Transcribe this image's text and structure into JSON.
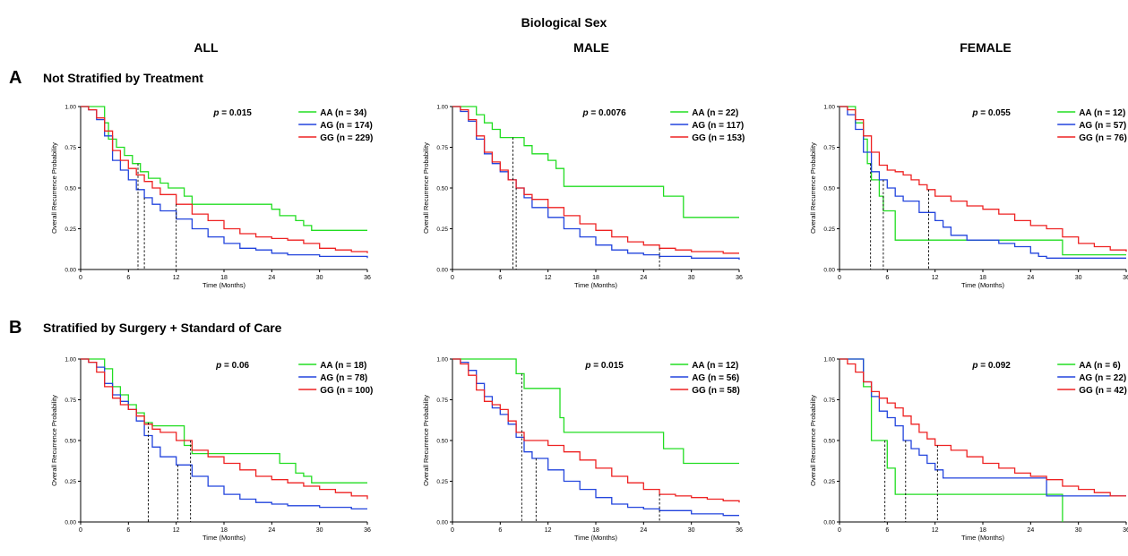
{
  "figure": {
    "supertitle": "Biological Sex",
    "columns": [
      "ALL",
      "MALE",
      "FEMALE"
    ],
    "rows": [
      {
        "letter": "A",
        "title": "Not Stratified by Treatment"
      },
      {
        "letter": "B",
        "title": "Stratified by Surgery + Standard of Care"
      }
    ],
    "colors": {
      "AA": "#22dd22",
      "AG": "#2244dd",
      "GG": "#ee2222"
    }
  },
  "chart_data": [
    {
      "type": "line",
      "id": "A-ALL",
      "xlabel": "Time (Months)",
      "ylabel": "Overall Recurrence Probability",
      "xlim": [
        0,
        36
      ],
      "ylim": [
        0,
        1
      ],
      "xticks": [
        "0",
        "6",
        "12",
        "18",
        "24",
        "30",
        "36"
      ],
      "yticks": [
        "0.00",
        "0.25",
        "0.50",
        "0.75",
        "1.00"
      ],
      "pvalue_prefix": "p",
      "pvalue_text": " = 0.015",
      "legend_position": "top-right",
      "medians": [
        7.2,
        8.0,
        12.0
      ],
      "series": [
        {
          "name": "AA (n = 34)",
          "key": "AA",
          "x": [
            0,
            2,
            3,
            3.5,
            4.5,
            5.5,
            6.5,
            7.5,
            8.5,
            10,
            11,
            12,
            13,
            14,
            18,
            23,
            24,
            25,
            27,
            28,
            29,
            36
          ],
          "y": [
            1,
            1,
            0.9,
            0.8,
            0.75,
            0.7,
            0.65,
            0.6,
            0.56,
            0.53,
            0.5,
            0.5,
            0.45,
            0.4,
            0.4,
            0.4,
            0.37,
            0.33,
            0.3,
            0.27,
            0.24,
            0.24
          ]
        },
        {
          "name": "AG (n = 174)",
          "key": "AG",
          "x": [
            0,
            1,
            2,
            3,
            4,
            5,
            6,
            7,
            8,
            9,
            10,
            12,
            14,
            16,
            18,
            20,
            22,
            24,
            26,
            28,
            30,
            32,
            36
          ],
          "y": [
            1,
            0.98,
            0.92,
            0.82,
            0.67,
            0.61,
            0.55,
            0.49,
            0.44,
            0.4,
            0.36,
            0.31,
            0.25,
            0.2,
            0.16,
            0.13,
            0.12,
            0.1,
            0.09,
            0.09,
            0.08,
            0.08,
            0.07
          ]
        },
        {
          "name": "GG (n = 229)",
          "key": "GG",
          "x": [
            0,
            1,
            2,
            3,
            4,
            5,
            6,
            7,
            8,
            9,
            10,
            12,
            14,
            16,
            18,
            20,
            22,
            24,
            26,
            28,
            30,
            32,
            34,
            36
          ],
          "y": [
            1,
            0.98,
            0.93,
            0.85,
            0.73,
            0.67,
            0.62,
            0.58,
            0.54,
            0.5,
            0.46,
            0.4,
            0.34,
            0.3,
            0.25,
            0.22,
            0.2,
            0.19,
            0.18,
            0.16,
            0.13,
            0.12,
            0.11,
            0.1
          ]
        }
      ]
    },
    {
      "type": "line",
      "id": "A-MALE",
      "xlabel": "Time (Months)",
      "ylabel": "Overall Recurrence Probability",
      "xlim": [
        0,
        36
      ],
      "ylim": [
        0,
        1
      ],
      "xticks": [
        "0",
        "6",
        "12",
        "18",
        "24",
        "30",
        "36"
      ],
      "yticks": [
        "0.00",
        "0.25",
        "0.50",
        "0.75",
        "1.00"
      ],
      "pvalue_prefix": "p",
      "pvalue_text": " = 0.0076",
      "legend_position": "top-right",
      "medians": [
        7.6,
        8.0,
        26.0
      ],
      "series": [
        {
          "name": "AA (n = 22)",
          "key": "AA",
          "x": [
            0,
            2,
            3,
            4,
            5,
            6,
            8,
            9,
            10,
            11.5,
            12,
            13,
            14,
            20,
            26,
            26.5,
            28,
            29,
            36
          ],
          "y": [
            1,
            1,
            0.95,
            0.9,
            0.86,
            0.81,
            0.81,
            0.76,
            0.71,
            0.71,
            0.67,
            0.62,
            0.51,
            0.51,
            0.51,
            0.45,
            0.45,
            0.32,
            0.32
          ]
        },
        {
          "name": "AG (n = 117)",
          "key": "AG",
          "x": [
            0,
            1,
            2,
            3,
            4,
            5,
            6,
            7,
            8,
            9,
            10,
            12,
            14,
            16,
            18,
            20,
            22,
            24,
            26,
            28,
            30,
            32,
            36
          ],
          "y": [
            1,
            0.97,
            0.91,
            0.8,
            0.71,
            0.65,
            0.6,
            0.55,
            0.5,
            0.44,
            0.38,
            0.32,
            0.25,
            0.2,
            0.15,
            0.12,
            0.1,
            0.09,
            0.08,
            0.08,
            0.07,
            0.07,
            0.06
          ]
        },
        {
          "name": "GG (n = 153)",
          "key": "GG",
          "x": [
            0,
            1,
            2,
            3,
            4,
            5,
            6,
            7,
            8,
            9,
            10,
            12,
            14,
            16,
            18,
            20,
            22,
            24,
            26,
            28,
            30,
            32,
            34,
            36
          ],
          "y": [
            1,
            0.98,
            0.92,
            0.82,
            0.72,
            0.66,
            0.61,
            0.55,
            0.5,
            0.46,
            0.43,
            0.38,
            0.33,
            0.28,
            0.24,
            0.2,
            0.17,
            0.15,
            0.13,
            0.12,
            0.11,
            0.11,
            0.1,
            0.1
          ]
        }
      ]
    },
    {
      "type": "line",
      "id": "A-FEMALE",
      "xlabel": "Time (Months)",
      "ylabel": "Overall Recurrence Probability",
      "xlim": [
        0,
        36
      ],
      "ylim": [
        0,
        1
      ],
      "xticks": [
        "0",
        "6",
        "12",
        "18",
        "24",
        "30",
        "36"
      ],
      "yticks": [
        "0.00",
        "0.25",
        "0.50",
        "0.75",
        "1.00"
      ],
      "pvalue_prefix": "p",
      "pvalue_text": " = 0.055",
      "legend_position": "top-right",
      "medians": [
        3.9,
        5.5,
        11.2
      ],
      "series": [
        {
          "name": "AA (n = 12)",
          "key": "AA",
          "x": [
            0,
            1,
            2,
            3,
            3.5,
            4,
            5,
            5.5,
            6.5,
            7,
            27,
            28,
            36
          ],
          "y": [
            1,
            1,
            0.9,
            0.8,
            0.65,
            0.55,
            0.45,
            0.36,
            0.36,
            0.18,
            0.18,
            0.09,
            0.09
          ]
        },
        {
          "name": "AG (n = 57)",
          "key": "AG",
          "x": [
            0,
            1,
            2,
            3,
            4,
            5,
            6,
            7,
            8,
            10,
            12,
            13,
            14,
            16,
            18,
            20,
            22,
            24,
            25,
            26,
            36
          ],
          "y": [
            1,
            0.95,
            0.86,
            0.72,
            0.6,
            0.55,
            0.5,
            0.45,
            0.42,
            0.35,
            0.3,
            0.26,
            0.21,
            0.18,
            0.18,
            0.16,
            0.14,
            0.1,
            0.08,
            0.07,
            0.07
          ]
        },
        {
          "name": "GG (n = 76)",
          "key": "GG",
          "x": [
            0,
            1,
            2,
            3,
            4,
            5,
            6,
            7,
            8,
            9,
            10,
            11,
            12,
            14,
            16,
            18,
            20,
            22,
            24,
            26,
            28,
            30,
            32,
            34,
            36
          ],
          "y": [
            1,
            0.98,
            0.92,
            0.82,
            0.72,
            0.64,
            0.61,
            0.6,
            0.58,
            0.55,
            0.52,
            0.49,
            0.45,
            0.42,
            0.39,
            0.37,
            0.34,
            0.3,
            0.27,
            0.25,
            0.2,
            0.16,
            0.14,
            0.12,
            0.11
          ]
        }
      ]
    },
    {
      "type": "line",
      "id": "B-ALL",
      "xlabel": "Time (Months)",
      "ylabel": "Overall Recurrence Probability",
      "xlim": [
        0,
        36
      ],
      "ylim": [
        0,
        1
      ],
      "xticks": [
        "0",
        "6",
        "12",
        "18",
        "24",
        "30",
        "36"
      ],
      "yticks": [
        "0.00",
        "0.25",
        "0.50",
        "0.75",
        "1.00"
      ],
      "pvalue_prefix": "p",
      "pvalue_text": " = 0.06",
      "legend_position": "top-right",
      "medians": [
        8.5,
        12.2,
        13.8
      ],
      "series": [
        {
          "name": "AA (n = 18)",
          "key": "AA",
          "x": [
            0,
            2,
            3,
            4,
            5,
            6,
            7,
            8,
            9,
            10,
            12,
            13,
            14,
            16,
            18,
            21,
            24,
            25,
            27,
            28,
            29,
            36
          ],
          "y": [
            1,
            1,
            0.94,
            0.83,
            0.78,
            0.72,
            0.67,
            0.61,
            0.59,
            0.59,
            0.59,
            0.47,
            0.42,
            0.42,
            0.42,
            0.42,
            0.42,
            0.36,
            0.3,
            0.28,
            0.24,
            0.24
          ]
        },
        {
          "name": "AG (n = 78)",
          "key": "AG",
          "x": [
            0,
            1,
            2,
            3,
            4,
            5,
            6,
            7,
            8,
            9,
            10,
            12,
            14,
            16,
            18,
            20,
            22,
            24,
            26,
            28,
            30,
            32,
            34,
            36
          ],
          "y": [
            1,
            0.98,
            0.95,
            0.85,
            0.78,
            0.74,
            0.69,
            0.62,
            0.53,
            0.46,
            0.4,
            0.35,
            0.28,
            0.22,
            0.17,
            0.14,
            0.12,
            0.11,
            0.1,
            0.1,
            0.09,
            0.09,
            0.08,
            0.08
          ]
        },
        {
          "name": "GG (n = 100)",
          "key": "GG",
          "x": [
            0,
            1,
            2,
            3,
            4,
            5,
            6,
            7,
            8,
            9,
            10,
            12,
            14,
            16,
            18,
            20,
            22,
            24,
            26,
            28,
            30,
            32,
            34,
            36
          ],
          "y": [
            1,
            0.98,
            0.92,
            0.83,
            0.76,
            0.72,
            0.69,
            0.65,
            0.6,
            0.57,
            0.55,
            0.5,
            0.44,
            0.4,
            0.36,
            0.32,
            0.28,
            0.26,
            0.24,
            0.22,
            0.2,
            0.18,
            0.16,
            0.14
          ]
        }
      ]
    },
    {
      "type": "line",
      "id": "B-MALE",
      "xlabel": "Time (Months)",
      "ylabel": "Overall Recurrence Probability",
      "xlim": [
        0,
        36
      ],
      "ylim": [
        0,
        1
      ],
      "xticks": [
        "0",
        "6",
        "12",
        "18",
        "24",
        "30",
        "36"
      ],
      "yticks": [
        "0.00",
        "0.25",
        "0.50",
        "0.75",
        "1.00"
      ],
      "pvalue_prefix": "p",
      "pvalue_text": " = 0.015",
      "legend_position": "top-right",
      "medians": [
        8.7,
        10.5,
        26.0
      ],
      "series": [
        {
          "name": "AA (n = 12)",
          "key": "AA",
          "x": [
            0,
            6,
            8,
            9,
            10,
            13,
            13.5,
            14,
            20,
            26,
            26.5,
            28,
            29,
            36
          ],
          "y": [
            1,
            1,
            0.91,
            0.82,
            0.82,
            0.82,
            0.64,
            0.55,
            0.55,
            0.55,
            0.45,
            0.45,
            0.36,
            0.36
          ]
        },
        {
          "name": "AG (n = 56)",
          "key": "AG",
          "x": [
            0,
            1,
            2,
            3,
            4,
            5,
            6,
            7,
            8,
            9,
            10,
            12,
            14,
            16,
            18,
            20,
            22,
            24,
            26,
            28,
            30,
            32,
            34,
            36
          ],
          "y": [
            1,
            0.98,
            0.93,
            0.85,
            0.77,
            0.7,
            0.66,
            0.6,
            0.52,
            0.43,
            0.39,
            0.32,
            0.25,
            0.2,
            0.15,
            0.11,
            0.09,
            0.08,
            0.07,
            0.07,
            0.05,
            0.05,
            0.04,
            0.04
          ]
        },
        {
          "name": "GG (n = 58)",
          "key": "GG",
          "x": [
            0,
            1,
            2,
            3,
            4,
            5,
            6,
            7,
            8,
            9,
            10,
            12,
            14,
            16,
            18,
            20,
            22,
            24,
            26,
            28,
            30,
            32,
            34,
            36
          ],
          "y": [
            1,
            0.97,
            0.9,
            0.81,
            0.74,
            0.72,
            0.69,
            0.62,
            0.55,
            0.5,
            0.5,
            0.47,
            0.43,
            0.38,
            0.33,
            0.28,
            0.24,
            0.2,
            0.17,
            0.16,
            0.15,
            0.14,
            0.13,
            0.12
          ]
        }
      ]
    },
    {
      "type": "line",
      "id": "B-FEMALE",
      "xlabel": "Time (Months)",
      "ylabel": "Overall Recurrence Probability",
      "xlim": [
        0,
        36
      ],
      "ylim": [
        0,
        1
      ],
      "xticks": [
        "0",
        "6",
        "12",
        "18",
        "24",
        "30",
        "36"
      ],
      "yticks": [
        "0.00",
        "0.25",
        "0.50",
        "0.75",
        "1.00"
      ],
      "pvalue_prefix": "p",
      "pvalue_text": " = 0.092",
      "legend_position": "top-right",
      "medians": [
        5.7,
        8.3,
        12.3
      ],
      "series": [
        {
          "name": "AA (n = 6)",
          "key": "AA",
          "x": [
            0,
            2,
            3,
            4,
            5.5,
            6,
            7,
            27,
            28
          ],
          "y": [
            1,
            1,
            0.83,
            0.5,
            0.5,
            0.33,
            0.17,
            0.17,
            0
          ]
        },
        {
          "name": "AG (n = 22)",
          "key": "AG",
          "x": [
            0,
            2,
            3,
            4,
            5,
            6,
            7,
            8,
            9,
            10,
            11,
            12,
            13,
            14,
            26,
            36
          ],
          "y": [
            1,
            1,
            0.86,
            0.77,
            0.68,
            0.64,
            0.59,
            0.5,
            0.45,
            0.41,
            0.36,
            0.32,
            0.27,
            0.27,
            0.16,
            0.16
          ]
        },
        {
          "name": "GG (n = 42)",
          "key": "GG",
          "x": [
            0,
            1,
            2,
            3,
            4,
            5,
            6,
            7,
            8,
            9,
            10,
            11,
            12,
            14,
            16,
            18,
            20,
            22,
            24,
            26,
            28,
            30,
            32,
            34,
            36
          ],
          "y": [
            1,
            0.97,
            0.92,
            0.86,
            0.8,
            0.76,
            0.73,
            0.7,
            0.65,
            0.6,
            0.55,
            0.51,
            0.47,
            0.44,
            0.4,
            0.36,
            0.33,
            0.3,
            0.28,
            0.26,
            0.22,
            0.2,
            0.18,
            0.16,
            0.16
          ]
        }
      ]
    }
  ]
}
